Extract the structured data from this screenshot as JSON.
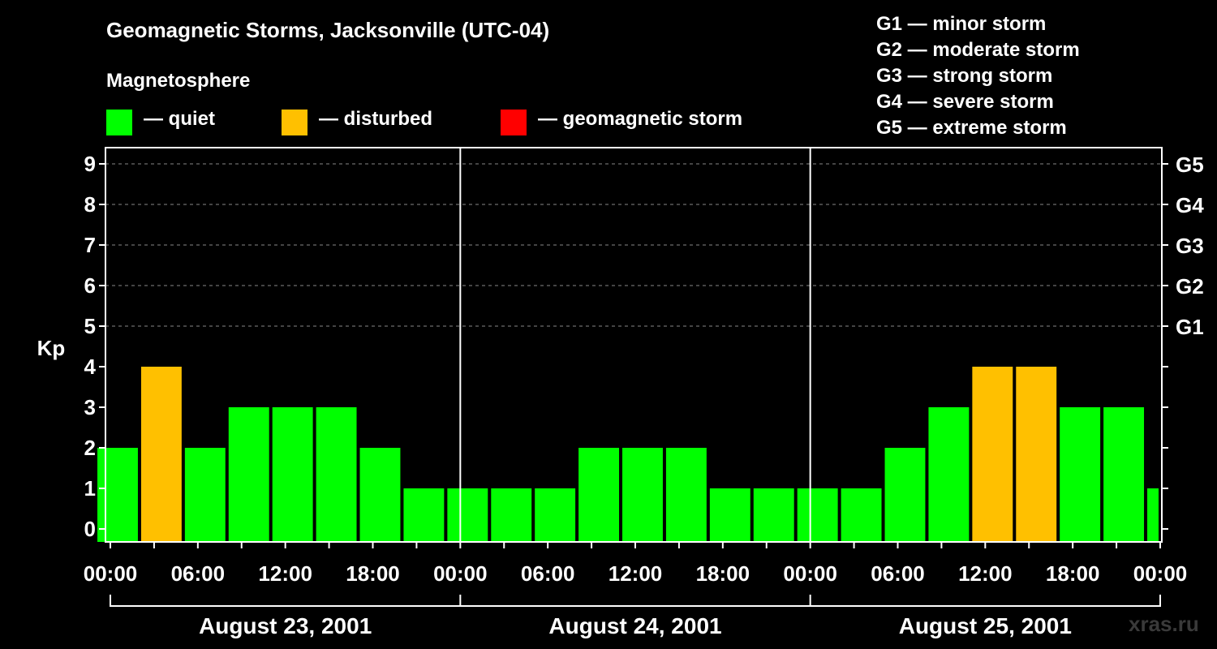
{
  "title": "Geomagnetic Storms, Jacksonville (UTC-04)",
  "legend": {
    "heading": "Magnetosphere",
    "items": [
      {
        "label": "— quiet",
        "color": "#00ff00"
      },
      {
        "label": "— disturbed",
        "color": "#ffc000"
      },
      {
        "label": "— geomagnetic storm",
        "color": "#ff0000"
      }
    ]
  },
  "storm_scale": [
    "G1 — minor storm",
    "G2 — moderate storm",
    "G3 — strong storm",
    "G4 — severe storm",
    "G5 — extreme storm"
  ],
  "watermark": "xras.ru",
  "chart_data": {
    "type": "bar",
    "ylabel": "Kp",
    "ylim": [
      0,
      9
    ],
    "yticks": [
      0,
      1,
      2,
      3,
      4,
      5,
      6,
      7,
      8,
      9
    ],
    "right_axis": [
      {
        "kp": 5,
        "label": "G1"
      },
      {
        "kp": 6,
        "label": "G2"
      },
      {
        "kp": 7,
        "label": "G3"
      },
      {
        "kp": 8,
        "label": "G4"
      },
      {
        "kp": 9,
        "label": "G5"
      }
    ],
    "grid": "dashed horizontal at Kp 5-9",
    "x_range_hours": [
      -1,
      72
    ],
    "x_tick_labels": [
      {
        "hour": 0,
        "label": "00:00"
      },
      {
        "hour": 6,
        "label": "06:00"
      },
      {
        "hour": 12,
        "label": "12:00"
      },
      {
        "hour": 18,
        "label": "18:00"
      },
      {
        "hour": 24,
        "label": "00:00"
      },
      {
        "hour": 30,
        "label": "06:00"
      },
      {
        "hour": 36,
        "label": "12:00"
      },
      {
        "hour": 42,
        "label": "18:00"
      },
      {
        "hour": 48,
        "label": "00:00"
      },
      {
        "hour": 54,
        "label": "06:00"
      },
      {
        "hour": 60,
        "label": "12:00"
      },
      {
        "hour": 66,
        "label": "18:00"
      },
      {
        "hour": 72,
        "label": "00:00"
      }
    ],
    "days": [
      {
        "label": "August 23, 2001",
        "start_hour": 0,
        "end_hour": 24
      },
      {
        "label": "August 24, 2001",
        "start_hour": 24,
        "end_hour": 48
      },
      {
        "label": "August 25, 2001",
        "start_hour": 48,
        "end_hour": 72
      }
    ],
    "bars": [
      {
        "start_hour": -1,
        "end_hour": 2,
        "kp": 2,
        "level": "quiet"
      },
      {
        "start_hour": 2,
        "end_hour": 5,
        "kp": 4,
        "level": "disturbed"
      },
      {
        "start_hour": 5,
        "end_hour": 8,
        "kp": 2,
        "level": "quiet"
      },
      {
        "start_hour": 8,
        "end_hour": 11,
        "kp": 3,
        "level": "quiet"
      },
      {
        "start_hour": 11,
        "end_hour": 14,
        "kp": 3,
        "level": "quiet"
      },
      {
        "start_hour": 14,
        "end_hour": 17,
        "kp": 3,
        "level": "quiet"
      },
      {
        "start_hour": 17,
        "end_hour": 20,
        "kp": 2,
        "level": "quiet"
      },
      {
        "start_hour": 20,
        "end_hour": 23,
        "kp": 1,
        "level": "quiet"
      },
      {
        "start_hour": 23,
        "end_hour": 26,
        "kp": 1,
        "level": "quiet"
      },
      {
        "start_hour": 26,
        "end_hour": 29,
        "kp": 1,
        "level": "quiet"
      },
      {
        "start_hour": 29,
        "end_hour": 32,
        "kp": 1,
        "level": "quiet"
      },
      {
        "start_hour": 32,
        "end_hour": 35,
        "kp": 2,
        "level": "quiet"
      },
      {
        "start_hour": 35,
        "end_hour": 38,
        "kp": 2,
        "level": "quiet"
      },
      {
        "start_hour": 38,
        "end_hour": 41,
        "kp": 2,
        "level": "quiet"
      },
      {
        "start_hour": 41,
        "end_hour": 44,
        "kp": 1,
        "level": "quiet"
      },
      {
        "start_hour": 44,
        "end_hour": 47,
        "kp": 1,
        "level": "quiet"
      },
      {
        "start_hour": 47,
        "end_hour": 50,
        "kp": 1,
        "level": "quiet"
      },
      {
        "start_hour": 50,
        "end_hour": 53,
        "kp": 1,
        "level": "quiet"
      },
      {
        "start_hour": 53,
        "end_hour": 56,
        "kp": 2,
        "level": "quiet"
      },
      {
        "start_hour": 56,
        "end_hour": 59,
        "kp": 3,
        "level": "quiet"
      },
      {
        "start_hour": 59,
        "end_hour": 62,
        "kp": 4,
        "level": "disturbed"
      },
      {
        "start_hour": 62,
        "end_hour": 65,
        "kp": 4,
        "level": "disturbed"
      },
      {
        "start_hour": 65,
        "end_hour": 68,
        "kp": 3,
        "level": "quiet"
      },
      {
        "start_hour": 68,
        "end_hour": 71,
        "kp": 3,
        "level": "quiet"
      },
      {
        "start_hour": 71,
        "end_hour": 72,
        "kp": 1,
        "level": "quiet"
      }
    ]
  }
}
